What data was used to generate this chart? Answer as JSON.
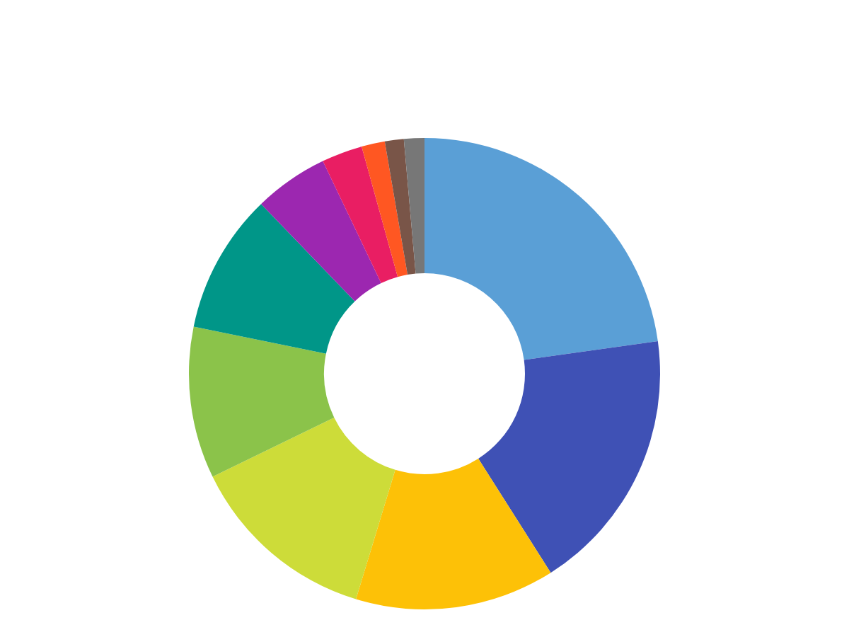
{
  "chart_data": {
    "type": "donut",
    "categories": [
      null,
      null,
      null,
      null,
      null,
      null,
      null,
      null,
      null,
      null,
      null
    ],
    "values": [
      22.8,
      18.2,
      13.7,
      13.1,
      10.4,
      9.6,
      5.1,
      2.8,
      1.6,
      1.3,
      1.4
    ],
    "colors": [
      "#5a9fd6",
      "#3f51b5",
      "#fdc107",
      "#cddc39",
      "#8bc34a",
      "#009688",
      "#9c27b0",
      "#e91e63",
      "#ff5722",
      "#795548",
      "#777777"
    ]
  }
}
